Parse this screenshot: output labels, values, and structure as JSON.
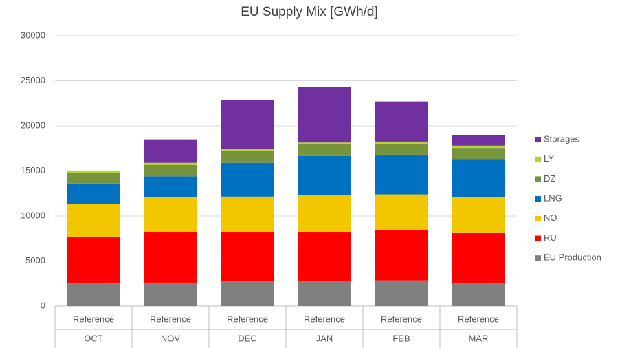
{
  "chart_data": {
    "type": "stacked_bar",
    "title": "EU Supply Mix [GWh/d]",
    "categories": [
      "OCT",
      "NOV",
      "DEC",
      "JAN",
      "FEB",
      "MAR"
    ],
    "subcategories": [
      "Reference",
      "Reference",
      "Reference",
      "Reference",
      "Reference",
      "Reference"
    ],
    "series": [
      {
        "name": "EU Production",
        "color": "#808080",
        "values": [
          2500,
          2600,
          2750,
          2750,
          2850,
          2550
        ]
      },
      {
        "name": "RU",
        "color": "#ff0000",
        "values": [
          5200,
          5600,
          5500,
          5500,
          5550,
          5550
        ]
      },
      {
        "name": "NO",
        "color": "#f2c700",
        "values": [
          3600,
          3900,
          3900,
          4050,
          4000,
          4000
        ]
      },
      {
        "name": "LNG",
        "color": "#0070c0",
        "values": [
          2300,
          2300,
          3750,
          4350,
          4400,
          4200
        ]
      },
      {
        "name": "DZ",
        "color": "#77933c",
        "values": [
          1200,
          1250,
          1300,
          1300,
          1200,
          1250
        ]
      },
      {
        "name": "LY",
        "color": "#b4d334",
        "values": [
          250,
          250,
          200,
          200,
          250,
          250
        ]
      },
      {
        "name": "Storages",
        "color": "#7030a0",
        "values": [
          0,
          2600,
          5500,
          6150,
          4450,
          1200
        ]
      }
    ],
    "ylim": [
      0,
      30000
    ],
    "yticks": [
      0,
      5000,
      10000,
      15000,
      20000,
      25000,
      30000
    ],
    "grid": true,
    "legend": "right"
  }
}
